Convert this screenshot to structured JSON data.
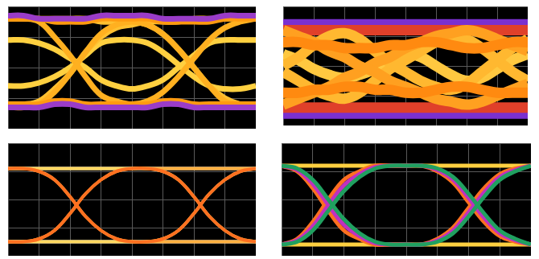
{
  "chart_data": [
    {
      "type": "line",
      "x": [
        0,
        0.5,
        1,
        1.5,
        2,
        2.5,
        3,
        3.5,
        4,
        4.5,
        5,
        5.5,
        6,
        6.5,
        7,
        7.5,
        8
      ],
      "xlim": [
        0,
        8
      ],
      "xticks": [
        0,
        1,
        2,
        3,
        4,
        5,
        6,
        7,
        8
      ],
      "ylim": [
        0,
        4
      ],
      "yticks": [
        0,
        1,
        2,
        3,
        4
      ],
      "grid": true,
      "tick_labels": false,
      "series": [
        {
          "color": "#9a3cc8",
          "values": [
            3.7,
            3.7,
            3.6,
            3.6,
            3.6,
            3.6,
            3.7,
            3.7,
            3.7,
            3.7,
            3.6,
            3.6,
            3.6,
            3.6,
            3.7,
            3.7,
            3.7
          ]
        },
        {
          "color": "#9a3cc8",
          "values": [
            0.7,
            0.7,
            0.7,
            0.8,
            0.8,
            0.7,
            0.7,
            0.7,
            0.7,
            0.7,
            0.8,
            0.8,
            0.7,
            0.7,
            0.7,
            0.7,
            0.7
          ]
        },
        {
          "color": "#ff9a10",
          "values": [
            3.6,
            3.6,
            3.6,
            3.5,
            3.5,
            3.5,
            3.6,
            3.6,
            3.6,
            3.6,
            3.5,
            3.5,
            3.5,
            3.5,
            3.6,
            3.6,
            3.6
          ]
        },
        {
          "color": "#ff9a10",
          "values": [
            0.8,
            0.8,
            0.8,
            0.9,
            0.9,
            0.8,
            0.8,
            0.8,
            0.8,
            0.8,
            0.9,
            0.9,
            0.8,
            0.8,
            0.8,
            0.8,
            0.8
          ]
        },
        {
          "color": "#ffb020",
          "values": [
            0.7,
            0.7,
            0.8,
            1.2,
            1.8,
            2.5,
            3.1,
            3.4,
            3.5,
            3.4,
            3.1,
            2.6,
            2.0,
            1.4,
            0.9,
            0.8,
            0.7
          ]
        },
        {
          "color": "#ffb020",
          "values": [
            3.6,
            3.6,
            3.5,
            3.0,
            2.4,
            1.7,
            1.1,
            0.9,
            0.8,
            0.9,
            1.2,
            1.7,
            2.3,
            2.9,
            3.3,
            3.5,
            3.6
          ]
        },
        {
          "color": "#ffc030",
          "values": [
            0.8,
            0.8,
            0.9,
            1.3,
            1.8,
            2.5,
            3.0,
            3.3,
            3.4,
            3.5,
            3.5,
            3.5,
            3.6,
            3.6,
            3.6,
            3.6,
            3.6
          ]
        },
        {
          "color": "#ffc030",
          "values": [
            3.6,
            3.6,
            3.6,
            3.6,
            3.6,
            3.6,
            3.5,
            3.5,
            3.5,
            3.4,
            3.1,
            2.6,
            2.0,
            1.4,
            1.0,
            0.8,
            0.8
          ]
        },
        {
          "color": "#ffd040",
          "values": [
            2.9,
            2.9,
            2.8,
            2.6,
            2.3,
            2.0,
            1.6,
            1.4,
            1.3,
            1.4,
            1.6,
            2.0,
            2.4,
            2.8,
            2.9,
            2.9,
            2.9
          ]
        },
        {
          "color": "#ffd040",
          "values": [
            1.4,
            1.4,
            1.5,
            1.7,
            2.0,
            2.4,
            2.8,
            2.9,
            2.9,
            2.8,
            2.5,
            2.1,
            1.7,
            1.4,
            1.3,
            1.3,
            1.4
          ]
        }
      ]
    },
    {
      "type": "line",
      "x": [
        0,
        0.5,
        1,
        1.5,
        2,
        2.5,
        3,
        3.5,
        4,
        4.5,
        5,
        5.5,
        6,
        6.5,
        7,
        7.5,
        8
      ],
      "xlim": [
        0,
        8
      ],
      "xticks": [
        0,
        1,
        2,
        3,
        4,
        5,
        6,
        7,
        8
      ],
      "ylim": [
        0,
        4
      ],
      "yticks": [
        0,
        1,
        2,
        3,
        4
      ],
      "grid": true,
      "tick_labels": false,
      "series": [
        {
          "color": "#ff8a10",
          "values": [
            2.8,
            2.8,
            2.7,
            2.7,
            2.6,
            2.6,
            2.6,
            2.7,
            2.7,
            2.8,
            2.8,
            2.7,
            2.6,
            2.6,
            2.7,
            2.8,
            2.8
          ]
        },
        {
          "color": "#ff8a10",
          "values": [
            1.1,
            1.1,
            1.2,
            1.2,
            1.3,
            1.3,
            1.2,
            1.2,
            1.1,
            1.1,
            1.2,
            1.3,
            1.3,
            1.2,
            1.1,
            1.1,
            1.1
          ]
        },
        {
          "color": "#ffa020",
          "values": [
            3.2,
            3.0,
            2.8,
            2.5,
            2.3,
            2.0,
            1.8,
            1.5,
            1.3,
            1.1,
            0.9,
            0.8,
            0.7,
            0.8,
            1.0,
            1.2,
            1.4
          ]
        },
        {
          "color": "#ffa020",
          "values": [
            0.7,
            0.9,
            1.1,
            1.3,
            1.6,
            1.8,
            2.1,
            2.3,
            2.6,
            2.8,
            3.0,
            3.1,
            3.2,
            3.1,
            2.9,
            2.7,
            2.5
          ]
        },
        {
          "color": "#ffb830",
          "values": [
            2.0,
            2.3,
            2.7,
            3.0,
            3.1,
            2.9,
            2.5,
            2.1,
            1.8,
            1.5,
            1.3,
            1.2,
            1.4,
            1.8,
            2.2,
            2.6,
            2.9
          ]
        },
        {
          "color": "#ffb830",
          "values": [
            1.8,
            1.5,
            1.2,
            1.0,
            0.9,
            1.1,
            1.5,
            1.9,
            2.2,
            2.5,
            2.8,
            3.0,
            2.9,
            2.6,
            2.2,
            1.8,
            1.5
          ]
        },
        {
          "color": "#ffc840",
          "values": [
            2.4,
            2.2,
            1.9,
            1.7,
            1.6,
            1.7,
            1.9,
            2.2,
            2.4,
            2.3,
            2.0,
            1.7,
            1.5,
            1.6,
            1.9,
            2.2,
            2.4
          ]
        },
        {
          "color": "#e0402a",
          "values": [
            3.2,
            3.2,
            3.2,
            3.2,
            3.2,
            3.2,
            3.2,
            3.2,
            3.2,
            3.2,
            3.2,
            3.2,
            3.2,
            3.2,
            3.2,
            3.2,
            3.2
          ]
        },
        {
          "color": "#e0402a",
          "values": [
            0.6,
            0.6,
            0.6,
            0.6,
            0.6,
            0.6,
            0.6,
            0.6,
            0.6,
            0.6,
            0.6,
            0.6,
            0.6,
            0.6,
            0.6,
            0.6,
            0.6
          ]
        },
        {
          "color": "#7a30d0",
          "values": [
            3.4,
            3.4,
            3.4,
            3.4,
            3.4,
            3.4,
            3.4,
            3.4,
            3.4,
            3.4,
            3.4,
            3.4,
            3.4,
            3.4,
            3.4,
            3.4,
            3.4
          ]
        },
        {
          "color": "#7a30d0",
          "values": [
            0.4,
            0.4,
            0.4,
            0.4,
            0.4,
            0.4,
            0.4,
            0.4,
            0.4,
            0.4,
            0.4,
            0.4,
            0.4,
            0.4,
            0.4,
            0.4,
            0.4
          ]
        }
      ]
    },
    {
      "type": "line",
      "x": [
        0,
        0.5,
        1,
        1.5,
        2,
        2.5,
        3,
        3.5,
        4,
        4.5,
        5,
        5.5,
        6,
        6.5,
        7,
        7.5,
        8
      ],
      "xlim": [
        0,
        8
      ],
      "xticks": [
        0,
        1,
        2,
        3,
        4,
        5,
        6,
        7,
        8
      ],
      "ylim": [
        0,
        4
      ],
      "yticks": [
        0,
        1,
        2,
        3,
        4
      ],
      "grid": true,
      "tick_labels": false,
      "series": [
        {
          "color": "#ff7020",
          "values": [
            0.5,
            0.5,
            0.6,
            0.9,
            1.5,
            2.2,
            2.7,
            3.0,
            3.1,
            3.1,
            3.0,
            2.7,
            2.1,
            1.4,
            0.9,
            0.6,
            0.5
          ]
        },
        {
          "color": "#ff7020",
          "values": [
            3.1,
            3.1,
            3.0,
            2.7,
            2.1,
            1.4,
            0.9,
            0.6,
            0.5,
            0.5,
            0.6,
            0.9,
            1.5,
            2.2,
            2.7,
            3.0,
            3.1
          ]
        },
        {
          "color": "#ffb040",
          "values": [
            0.5,
            0.5,
            0.6,
            0.9,
            1.5,
            2.2,
            2.7,
            3.0,
            3.1,
            3.1,
            3.1,
            3.1,
            3.1,
            3.1,
            3.1,
            3.1,
            3.1
          ]
        },
        {
          "color": "#ffb040",
          "values": [
            3.1,
            3.1,
            3.0,
            2.7,
            2.1,
            1.4,
            0.9,
            0.6,
            0.5,
            0.5,
            0.5,
            0.5,
            0.5,
            0.5,
            0.5,
            0.5,
            0.5
          ]
        },
        {
          "color": "#ffd860",
          "values": [
            3.1,
            3.1,
            3.1,
            3.1,
            3.1,
            3.1,
            3.1,
            3.1,
            3.1,
            3.1,
            3.0,
            2.7,
            2.1,
            1.4,
            0.9,
            0.6,
            0.5
          ]
        },
        {
          "color": "#ffd860",
          "values": [
            0.5,
            0.5,
            0.5,
            0.5,
            0.5,
            0.5,
            0.5,
            0.5,
            0.5,
            0.5,
            0.6,
            0.9,
            1.5,
            2.2,
            2.7,
            3.0,
            3.1
          ]
        },
        {
          "color": "#ffffff",
          "values": [
            3.1,
            3.1,
            3.1,
            3.1,
            3.1,
            3.1,
            3.1,
            3.1,
            3.1,
            3.1,
            3.1,
            3.1,
            3.1,
            3.1,
            3.1,
            3.1,
            3.1
          ]
        },
        {
          "color": "#ffffff",
          "values": [
            0.5,
            0.5,
            0.5,
            0.5,
            0.5,
            0.5,
            0.5,
            0.5,
            0.5,
            0.5,
            0.5,
            0.5,
            0.5,
            0.5,
            0.5,
            0.5,
            0.5
          ]
        }
      ]
    },
    {
      "type": "line",
      "x": [
        0,
        0.5,
        1,
        1.5,
        2,
        2.5,
        3,
        3.5,
        4,
        4.5,
        5,
        5.5,
        6,
        6.5,
        7,
        7.5,
        8
      ],
      "xlim": [
        0,
        8
      ],
      "xticks": [
        0,
        1,
        2,
        3,
        4,
        5,
        6,
        7,
        8
      ],
      "ylim": [
        0,
        4
      ],
      "yticks": [
        0,
        1,
        2,
        3,
        4
      ],
      "grid": true,
      "tick_labels": false,
      "series": [
        {
          "color": "#20a060",
          "values": [
            0.4,
            0.5,
            0.9,
            1.6,
            2.3,
            2.8,
            3.1,
            3.2,
            3.2,
            3.2,
            3.1,
            2.8,
            2.2,
            1.5,
            0.9,
            0.6,
            0.4
          ]
        },
        {
          "color": "#20a060",
          "values": [
            3.2,
            3.1,
            2.7,
            2.0,
            1.3,
            0.8,
            0.5,
            0.4,
            0.4,
            0.4,
            0.5,
            0.8,
            1.4,
            2.1,
            2.7,
            3.0,
            3.2
          ]
        },
        {
          "color": "#c030c0",
          "values": [
            0.4,
            0.55,
            1.05,
            1.8,
            2.5,
            2.9,
            3.15,
            3.2,
            3.2,
            3.2,
            3.05,
            2.7,
            2.05,
            1.35,
            0.8,
            0.55,
            0.4
          ]
        },
        {
          "color": "#c030c0",
          "values": [
            3.2,
            3.05,
            2.55,
            1.8,
            1.1,
            0.7,
            0.45,
            0.4,
            0.4,
            0.4,
            0.55,
            0.9,
            1.55,
            2.25,
            2.8,
            3.05,
            3.2
          ]
        },
        {
          "color": "#ff7020",
          "values": [
            0.4,
            0.6,
            1.2,
            2.0,
            2.7,
            3.0,
            3.2,
            3.2,
            3.2,
            3.2,
            3.0,
            2.6,
            1.9,
            1.2,
            0.7,
            0.5,
            0.4
          ]
        },
        {
          "color": "#ff7020",
          "values": [
            3.2,
            3.0,
            2.4,
            1.6,
            0.9,
            0.6,
            0.4,
            0.4,
            0.4,
            0.4,
            0.6,
            1.0,
            1.7,
            2.4,
            2.9,
            3.1,
            3.2
          ]
        },
        {
          "color": "#ffd040",
          "values": [
            3.2,
            3.2,
            3.2,
            3.2,
            3.2,
            3.2,
            3.2,
            3.2,
            3.2,
            3.2,
            3.2,
            3.2,
            3.2,
            3.2,
            3.2,
            3.2,
            3.2
          ]
        },
        {
          "color": "#ffd040",
          "values": [
            0.4,
            0.4,
            0.4,
            0.4,
            0.4,
            0.4,
            0.4,
            0.4,
            0.4,
            0.4,
            0.4,
            0.4,
            0.4,
            0.4,
            0.4,
            0.4,
            0.4
          ]
        }
      ]
    }
  ]
}
